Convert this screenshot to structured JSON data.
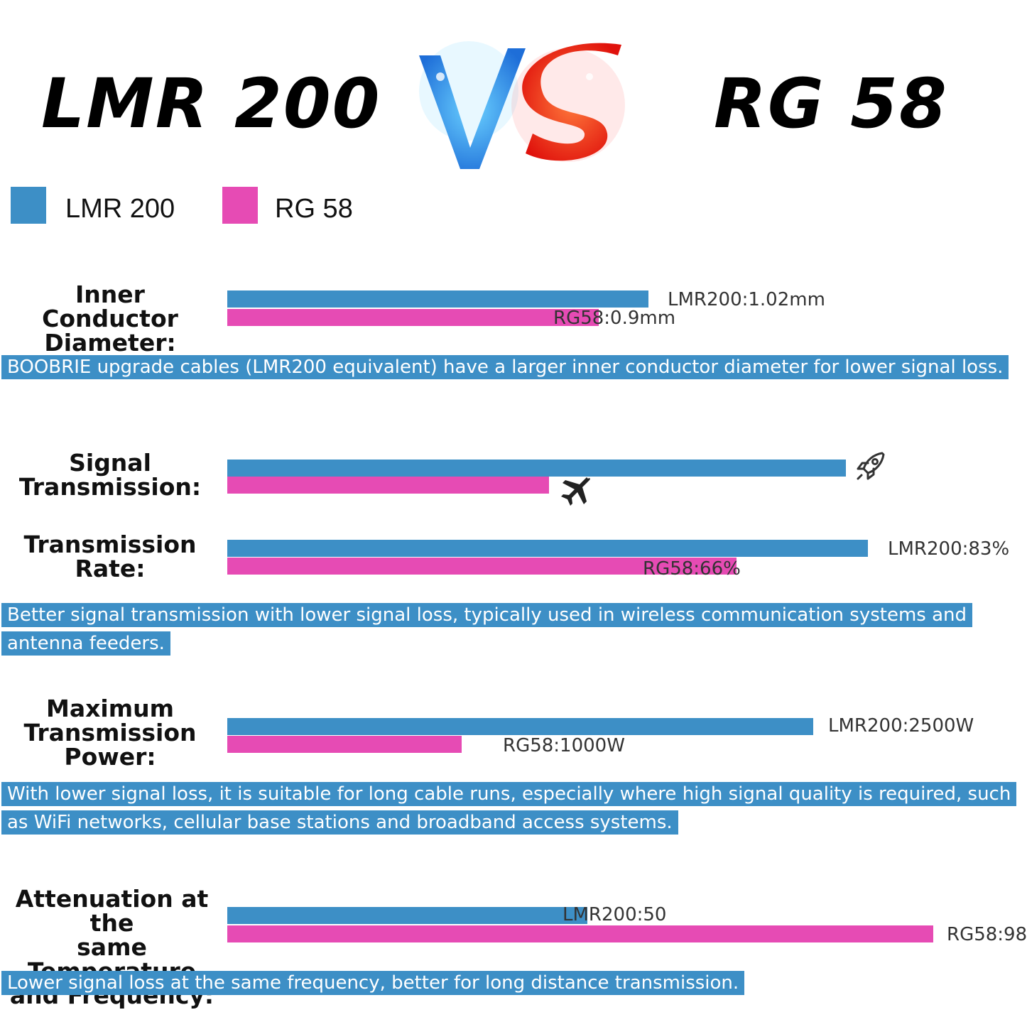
{
  "header": {
    "left_title": "LMR 200",
    "right_title": "RG 58"
  },
  "colors": {
    "lmr": "#3d8fc6",
    "rg": "#e64bb4"
  },
  "legend": [
    {
      "label": "LMR 200",
      "color": "#3d8fc6"
    },
    {
      "label": "RG 58",
      "color": "#e64bb4"
    }
  ],
  "sections": {
    "inner": {
      "label_lines": [
        "Inner Conductor",
        "Diameter:"
      ],
      "lmr_label": "LMR200:1.02mm",
      "rg_label": "RG58:0.9mm",
      "note": "BOOBRIE upgrade cables (LMR200 equivalent) have a larger inner conductor diameter for lower signal loss."
    },
    "signal": {
      "label_lines": [
        "Signal",
        "Transmission:"
      ],
      "lmr_icon": "rocket-icon",
      "rg_icon": "airplane-icon"
    },
    "rate": {
      "label_lines": [
        "Transmission",
        "Rate:"
      ],
      "lmr_label": "LMR200:83%",
      "rg_label": "RG58:66%",
      "note": "Better signal transmission with lower signal loss, typically used in wireless communication systems and antenna feeders."
    },
    "power": {
      "label_lines": [
        "Maximum",
        "Transmission",
        "Power:"
      ],
      "lmr_label": "LMR200:2500W",
      "rg_label": "RG58:1000W",
      "note": "With lower signal loss, it is suitable for long cable runs, especially where high signal quality is required, such as WiFi networks, cellular base stations and broadband access systems."
    },
    "atten": {
      "label_lines": [
        "Attenuation at the",
        "same Temperature",
        "and Frequency:"
      ],
      "lmr_label": "LMR200:50",
      "rg_label": "RG58:98",
      "note": "Lower signal loss at the same frequency, better for long distance transmission."
    }
  },
  "chart_data": [
    {
      "type": "bar",
      "id": "inner",
      "categories": [
        "LMR 200",
        "RG 58"
      ],
      "values": [
        1.02,
        0.9
      ],
      "unit": "mm"
    },
    {
      "type": "bar",
      "id": "signal",
      "categories": [
        "LMR 200",
        "RG 58"
      ],
      "values": [
        100,
        52
      ]
    },
    {
      "type": "bar",
      "id": "rate",
      "categories": [
        "LMR 200",
        "RG 58"
      ],
      "values": [
        83,
        66
      ],
      "unit": "%"
    },
    {
      "type": "bar",
      "id": "power",
      "categories": [
        "LMR 200",
        "RG 58"
      ],
      "values": [
        2500,
        1000
      ],
      "unit": "W"
    },
    {
      "type": "bar",
      "id": "atten",
      "categories": [
        "LMR 200",
        "RG 58"
      ],
      "values": [
        50,
        98
      ]
    }
  ]
}
